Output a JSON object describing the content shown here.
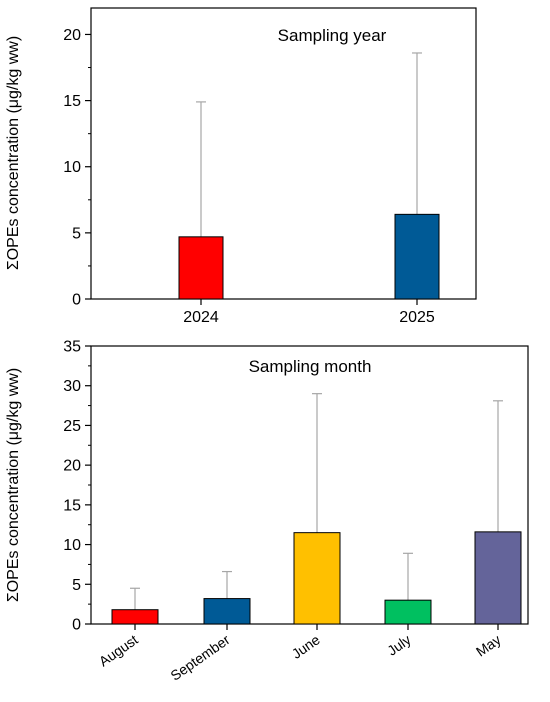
{
  "chart_data": [
    {
      "type": "bar",
      "title": "Sampling year",
      "ylabel": "ΣOPEs concentration (μg/kg ww)",
      "xlabel": "",
      "categories": [
        "2024",
        "2025"
      ],
      "values": [
        4.7,
        6.4
      ],
      "error_upper": [
        14.9,
        18.6
      ],
      "colors": [
        "#ff0000",
        "#005a96"
      ],
      "ylim": [
        0,
        22
      ],
      "yticks": [
        "0",
        "5",
        "10",
        "15",
        "20"
      ],
      "grid": false
    },
    {
      "type": "bar",
      "title": "Sampling month",
      "ylabel": "ΣOPEs concentration (μg/kg ww)",
      "xlabel": "",
      "categories": [
        "August",
        "September",
        "June",
        "July",
        "May"
      ],
      "values": [
        1.8,
        3.2,
        11.5,
        3.0,
        11.6
      ],
      "error_upper": [
        4.5,
        6.6,
        29.0,
        8.9,
        28.1
      ],
      "colors": [
        "#ff0000",
        "#005a96",
        "#ffc000",
        "#00c060",
        "#64649a"
      ],
      "ylim": [
        0,
        35
      ],
      "yticks": [
        "0",
        "5",
        "10",
        "15",
        "20",
        "25",
        "30",
        "35"
      ],
      "grid": false
    }
  ]
}
